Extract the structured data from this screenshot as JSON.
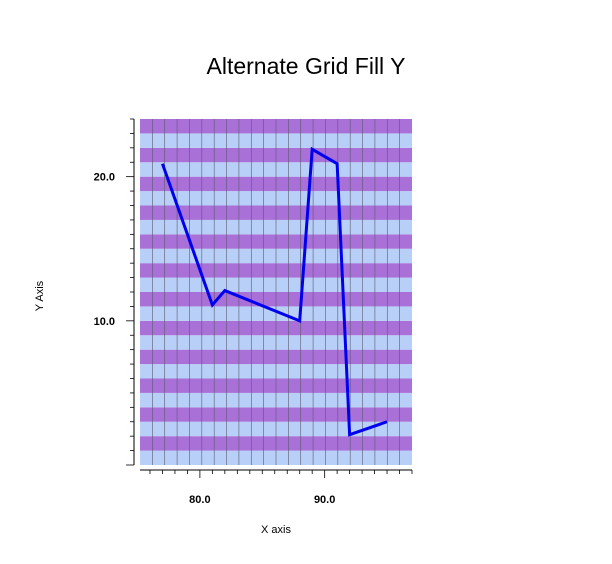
{
  "chart_data": {
    "type": "line",
    "title": "Alternate Grid Fill Y",
    "xlabel": "X axis",
    "ylabel": "Y Axis",
    "xlim": [
      75.2,
      97.0
    ],
    "ylim": [
      0.0,
      24.0
    ],
    "x_ticks": [
      80.0,
      90.0
    ],
    "x_tick_labels": [
      "80.0",
      "90.0"
    ],
    "y_ticks": [
      10.0,
      20.0
    ],
    "y_tick_labels": [
      "10.0",
      "20.0"
    ],
    "grid": true,
    "grid_fill": "alternate-y",
    "series": [
      {
        "x": [
          77.0,
          81.0,
          82.0,
          88.0,
          89.0,
          91.0,
          92.0,
          95.0
        ],
        "y": [
          20.9,
          11.1,
          12.1,
          10.0,
          21.9,
          20.9,
          2.1,
          3.0
        ]
      }
    ],
    "colors": {
      "line": "#0000ee",
      "band_a": "#a970d8",
      "band_b": "#b8d0f8",
      "grid": "#5a5a6e",
      "axis": "#000000"
    }
  }
}
